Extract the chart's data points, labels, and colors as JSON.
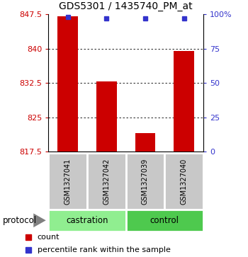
{
  "title": "GDS5301 / 1435740_PM_at",
  "samples": [
    "GSM1327041",
    "GSM1327042",
    "GSM1327039",
    "GSM1327040"
  ],
  "bar_values": [
    847.0,
    832.8,
    821.5,
    839.5
  ],
  "percentile_values": [
    98,
    97,
    97,
    97
  ],
  "ylim_left": [
    817.5,
    847.5
  ],
  "ylim_right": [
    0,
    100
  ],
  "yticks_left": [
    817.5,
    825.0,
    832.5,
    840.0,
    847.5
  ],
  "ytick_labels_left": [
    "817.5",
    "825",
    "832.5",
    "840",
    "847.5"
  ],
  "yticks_right": [
    0,
    25,
    50,
    75,
    100
  ],
  "ytick_labels_right": [
    "0",
    "25",
    "50",
    "75",
    "100%"
  ],
  "bar_color": "#cc0000",
  "dot_color": "#3333cc",
  "bar_bottom": 817.5,
  "castration_color": "#90ee90",
  "control_color": "#4ec94e",
  "sample_box_color": "#c8c8c8",
  "title_fontsize": 10,
  "tick_fontsize": 8,
  "sample_fontsize": 7,
  "proto_fontsize": 8.5,
  "legend_fontsize": 8
}
